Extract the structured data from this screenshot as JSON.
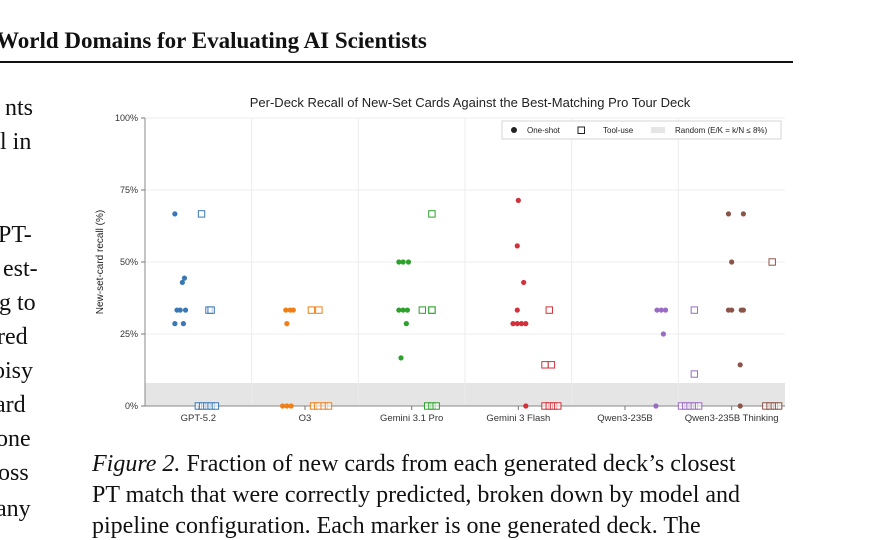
{
  "page": {
    "header": "World Domains for Evaluating AI Scientists",
    "body_fragments": [
      "nts",
      "l in",
      "PT-",
      "est-",
      "g to",
      "red",
      "oisy",
      "ard",
      "one",
      "oss",
      "any"
    ],
    "caption_label": "Figure 2.",
    "caption_line1": "Fraction of new cards from each generated deck’s closest",
    "caption_line2": "PT match that were correctly predicted, broken down by model and",
    "caption_line3": "pipeline configuration. Each marker is one generated deck. The"
  },
  "chart_data": {
    "type": "scatter",
    "title": "Per-Deck Recall of New-Set Cards Against the Best-Matching Pro Tour Deck",
    "ylabel": "New-set-card recall (%)",
    "xlabel": "",
    "ylim": [
      0,
      100
    ],
    "yticks": [
      "0%",
      "25%",
      "50%",
      "75%",
      "100%"
    ],
    "grid": true,
    "legend_position": "top-right",
    "legend": {
      "one_shot": "One-shot",
      "tool_use": "Tool-use",
      "random": "Random  (E/K = k/N ≤ 8%)"
    },
    "random_baseline_max": 8,
    "categories": [
      "GPT-5.2",
      "O3",
      "Gemini 3.1 Pro",
      "Gemini 3 Flash",
      "Qwen3-235B",
      "Qwen3-235B Thinking"
    ],
    "colors": [
      "#3a78b5",
      "#f07f16",
      "#2ea02d",
      "#d2303a",
      "#9a6bc2",
      "#8b5449"
    ],
    "series": [
      {
        "one_shot": [
          [
            -0.22,
            66.7
          ],
          [
            -0.2,
            33.3
          ],
          [
            -0.17,
            33.3
          ],
          [
            -0.12,
            33.3
          ],
          [
            -0.15,
            42.9
          ],
          [
            -0.13,
            44.4
          ],
          [
            -0.22,
            28.6
          ],
          [
            -0.14,
            28.6
          ]
        ],
        "tool_use": [
          [
            0.03,
            66.7
          ],
          [
            0.1,
            33.3
          ],
          [
            0.12,
            33.3
          ],
          [
            0.0,
            0
          ],
          [
            0.04,
            0
          ],
          [
            0.08,
            0
          ],
          [
            0.12,
            0
          ],
          [
            0.16,
            0
          ]
        ]
      },
      {
        "one_shot": [
          [
            -0.18,
            33.3
          ],
          [
            -0.14,
            33.3
          ],
          [
            -0.11,
            33.3
          ],
          [
            -0.17,
            28.6
          ],
          [
            -0.21,
            0
          ],
          [
            -0.17,
            0
          ],
          [
            -0.13,
            0
          ]
        ],
        "tool_use": [
          [
            0.06,
            33.3
          ],
          [
            0.13,
            33.3
          ],
          [
            0.08,
            0
          ],
          [
            0.12,
            0
          ],
          [
            0.18,
            0
          ],
          [
            0.22,
            0
          ]
        ]
      },
      {
        "one_shot": [
          [
            -0.12,
            50
          ],
          [
            -0.08,
            50
          ],
          [
            -0.03,
            50
          ],
          [
            -0.12,
            33.3
          ],
          [
            -0.08,
            33.3
          ],
          [
            -0.04,
            33.3
          ],
          [
            -0.05,
            28.6
          ],
          [
            -0.1,
            16.7
          ]
        ],
        "tool_use": [
          [
            0.19,
            66.7
          ],
          [
            0.1,
            33.3
          ],
          [
            0.19,
            33.3
          ],
          [
            0.19,
            33.3
          ],
          [
            0.15,
            0
          ],
          [
            0.19,
            0
          ],
          [
            0.23,
            0
          ]
        ]
      },
      {
        "one_shot": [
          [
            0.0,
            71.4
          ],
          [
            -0.01,
            55.6
          ],
          [
            0.05,
            42.9
          ],
          [
            -0.01,
            33.3
          ],
          [
            -0.05,
            28.6
          ],
          [
            -0.01,
            28.6
          ],
          [
            0.03,
            28.6
          ],
          [
            0.07,
            28.6
          ],
          [
            0.07,
            0
          ]
        ],
        "tool_use": [
          [
            0.29,
            33.3
          ],
          [
            0.25,
            14.3
          ],
          [
            0.31,
            14.3
          ],
          [
            0.25,
            0
          ],
          [
            0.29,
            0
          ],
          [
            0.33,
            0
          ],
          [
            0.37,
            0
          ]
        ]
      },
      {
        "one_shot": [
          [
            0.3,
            33.3
          ],
          [
            0.34,
            33.3
          ],
          [
            0.38,
            33.3
          ],
          [
            0.36,
            25
          ],
          [
            0.29,
            0
          ]
        ],
        "tool_use": [
          [
            0.65,
            33.3
          ],
          [
            0.65,
            11.1
          ],
          [
            0.53,
            0
          ],
          [
            0.57,
            0
          ],
          [
            0.61,
            0
          ],
          [
            0.65,
            0
          ],
          [
            0.69,
            0
          ]
        ]
      },
      {
        "one_shot": [
          [
            -0.03,
            66.7
          ],
          [
            0.11,
            66.7
          ],
          [
            0.0,
            50
          ],
          [
            -0.03,
            33.3
          ],
          [
            0.0,
            33.3
          ],
          [
            0.09,
            33.3
          ],
          [
            0.11,
            33.3
          ],
          [
            0.08,
            14.3
          ],
          [
            0.08,
            0
          ]
        ],
        "tool_use": [
          [
            0.38,
            50
          ],
          [
            0.32,
            0
          ],
          [
            0.36,
            0
          ],
          [
            0.4,
            0
          ],
          [
            0.44,
            0
          ]
        ]
      }
    ]
  }
}
